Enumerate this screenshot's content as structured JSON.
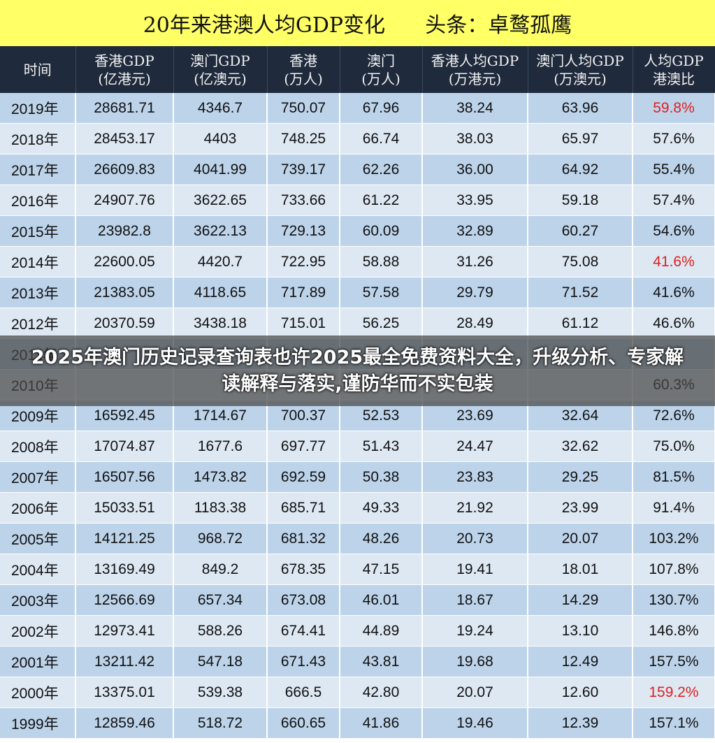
{
  "title": {
    "main": "20年来港澳人均GDP变化",
    "source": "头条：卓鹜孤鹰"
  },
  "headers": [
    {
      "l1": "时间",
      "l2": ""
    },
    {
      "l1": "香港GDP",
      "l2": "(亿港元)"
    },
    {
      "l1": "澳门GDP",
      "l2": "(亿澳元)"
    },
    {
      "l1": "香港",
      "l2": "(万人)"
    },
    {
      "l1": "澳门",
      "l2": "(万人)"
    },
    {
      "l1": "香港人均GDP",
      "l2": "(万港元)"
    },
    {
      "l1": "澳门人均GDP",
      "l2": "(万澳元)"
    },
    {
      "l1": "人均GDP",
      "l2": "港澳比"
    }
  ],
  "rows": [
    {
      "year": "2019年",
      "hk_gdp": "28681.71",
      "mo_gdp": "4346.7",
      "hk_pop": "750.07",
      "mo_pop": "67.96",
      "hk_pc": "38.24",
      "mo_pc": "63.96",
      "ratio": "59.8%",
      "highlight": true
    },
    {
      "year": "2018年",
      "hk_gdp": "28453.17",
      "mo_gdp": "4403",
      "hk_pop": "748.25",
      "mo_pop": "66.74",
      "hk_pc": "38.03",
      "mo_pc": "65.97",
      "ratio": "57.6%",
      "highlight": false
    },
    {
      "year": "2017年",
      "hk_gdp": "26609.83",
      "mo_gdp": "4041.99",
      "hk_pop": "739.17",
      "mo_pop": "62.26",
      "hk_pc": "36.00",
      "mo_pc": "64.92",
      "ratio": "55.4%",
      "highlight": false
    },
    {
      "year": "2016年",
      "hk_gdp": "24907.76",
      "mo_gdp": "3622.65",
      "hk_pop": "733.66",
      "mo_pop": "61.22",
      "hk_pc": "33.95",
      "mo_pc": "59.18",
      "ratio": "57.4%",
      "highlight": false
    },
    {
      "year": "2015年",
      "hk_gdp": "23982.8",
      "mo_gdp": "3622.13",
      "hk_pop": "729.13",
      "mo_pop": "60.09",
      "hk_pc": "32.89",
      "mo_pc": "60.27",
      "ratio": "54.6%",
      "highlight": false
    },
    {
      "year": "2014年",
      "hk_gdp": "22600.05",
      "mo_gdp": "4420.7",
      "hk_pop": "722.95",
      "mo_pop": "58.88",
      "hk_pc": "31.26",
      "mo_pc": "75.08",
      "ratio": "41.6%",
      "highlight": true
    },
    {
      "year": "2013年",
      "hk_gdp": "21383.05",
      "mo_gdp": "4118.65",
      "hk_pop": "717.89",
      "mo_pop": "57.58",
      "hk_pc": "29.79",
      "mo_pc": "71.52",
      "ratio": "41.6%",
      "highlight": false
    },
    {
      "year": "2012年",
      "hk_gdp": "20370.59",
      "mo_gdp": "3438.18",
      "hk_pop": "715.01",
      "mo_pop": "56.25",
      "hk_pc": "28.49",
      "mo_pc": "61.12",
      "ratio": "46.6%",
      "highlight": false
    },
    {
      "year": "2011年",
      "hk_gdp": "",
      "mo_gdp": "",
      "hk_pop": "",
      "mo_pop": "",
      "hk_pc": "",
      "mo_pc": "",
      "ratio": "",
      "highlight": false
    },
    {
      "year": "2010年",
      "hk_gdp": "",
      "mo_gdp": "",
      "hk_pop": "",
      "mo_pop": "",
      "hk_pc": "",
      "mo_pc": "",
      "ratio": "60.3%",
      "highlight": false
    },
    {
      "year": "2009年",
      "hk_gdp": "16592.45",
      "mo_gdp": "1714.67",
      "hk_pop": "700.37",
      "mo_pop": "52.53",
      "hk_pc": "23.69",
      "mo_pc": "32.64",
      "ratio": "72.6%",
      "highlight": false
    },
    {
      "year": "2008年",
      "hk_gdp": "17074.87",
      "mo_gdp": "1677.6",
      "hk_pop": "697.77",
      "mo_pop": "51.43",
      "hk_pc": "24.47",
      "mo_pc": "32.62",
      "ratio": "75.0%",
      "highlight": false
    },
    {
      "year": "2007年",
      "hk_gdp": "16507.56",
      "mo_gdp": "1473.82",
      "hk_pop": "692.59",
      "mo_pop": "50.38",
      "hk_pc": "23.83",
      "mo_pc": "29.25",
      "ratio": "81.5%",
      "highlight": false
    },
    {
      "year": "2006年",
      "hk_gdp": "15033.51",
      "mo_gdp": "1183.38",
      "hk_pop": "685.71",
      "mo_pop": "49.33",
      "hk_pc": "21.92",
      "mo_pc": "23.99",
      "ratio": "91.4%",
      "highlight": false
    },
    {
      "year": "2005年",
      "hk_gdp": "14121.25",
      "mo_gdp": "968.72",
      "hk_pop": "681.32",
      "mo_pop": "48.26",
      "hk_pc": "20.73",
      "mo_pc": "20.07",
      "ratio": "103.2%",
      "highlight": false
    },
    {
      "year": "2004年",
      "hk_gdp": "13169.49",
      "mo_gdp": "849.2",
      "hk_pop": "678.35",
      "mo_pop": "47.15",
      "hk_pc": "19.41",
      "mo_pc": "18.01",
      "ratio": "107.8%",
      "highlight": false
    },
    {
      "year": "2003年",
      "hk_gdp": "12566.69",
      "mo_gdp": "657.34",
      "hk_pop": "673.08",
      "mo_pop": "46.01",
      "hk_pc": "18.67",
      "mo_pc": "14.29",
      "ratio": "130.7%",
      "highlight": false
    },
    {
      "year": "2002年",
      "hk_gdp": "12973.41",
      "mo_gdp": "588.26",
      "hk_pop": "674.41",
      "mo_pop": "44.89",
      "hk_pc": "19.24",
      "mo_pc": "13.10",
      "ratio": "146.8%",
      "highlight": false
    },
    {
      "year": "2001年",
      "hk_gdp": "13211.42",
      "mo_gdp": "547.18",
      "hk_pop": "671.43",
      "mo_pop": "43.81",
      "hk_pc": "19.68",
      "mo_pc": "12.49",
      "ratio": "157.5%",
      "highlight": false
    },
    {
      "year": "2000年",
      "hk_gdp": "13375.01",
      "mo_gdp": "539.38",
      "hk_pop": "666.5",
      "mo_pop": "42.80",
      "hk_pc": "20.07",
      "mo_pc": "12.60",
      "ratio": "159.2%",
      "highlight": true
    },
    {
      "year": "1999年",
      "hk_gdp": "12859.46",
      "mo_gdp": "518.72",
      "hk_pop": "660.65",
      "mo_pop": "41.86",
      "hk_pc": "19.46",
      "mo_pc": "12.39",
      "ratio": "157.1%",
      "highlight": false
    }
  ],
  "overlay": {
    "text": "2025年澳门历史记录查询表也许2025最全免费资料大全，升级分析、专家解读解释与落实,谨防华而不实包装"
  },
  "colors": {
    "title_bg": "#ffff66",
    "header_bg": "#1f2a3c",
    "row_odd": "#bcd3ea",
    "row_even": "#dde8f3",
    "highlight": "#e02020"
  }
}
